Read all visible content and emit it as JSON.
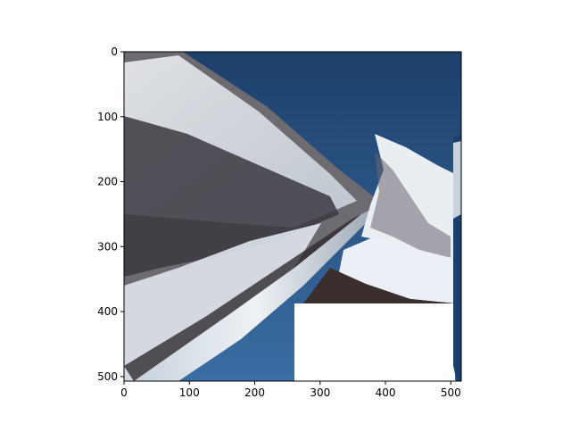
{
  "figure": {
    "background": "#ffffff"
  },
  "chart_data": {
    "type": "heatmap",
    "content": "warped mountain photograph displayed as image (imshow)",
    "title": "",
    "xlabel": "",
    "ylabel": "",
    "xlim": [
      0,
      516
    ],
    "ylim": [
      507,
      0
    ],
    "y_axis_inverted": true,
    "x_ticks": [
      0,
      100,
      200,
      300,
      400,
      500
    ],
    "y_ticks": [
      0,
      100,
      200,
      300,
      400,
      500
    ],
    "x_tick_labels": [
      "0",
      "100",
      "200",
      "300",
      "400",
      "500"
    ],
    "y_tick_labels": [
      "0",
      "100",
      "200",
      "300",
      "400",
      "500"
    ],
    "grid": false,
    "colors": {
      "sky": "#2f5d8f",
      "sky_dark": "#1d3f6b",
      "snow": "#e6edf3",
      "rock": "#5a5660",
      "rock_dark": "#2e2a30",
      "blank": "#ffffff",
      "axis": "#000000"
    }
  }
}
